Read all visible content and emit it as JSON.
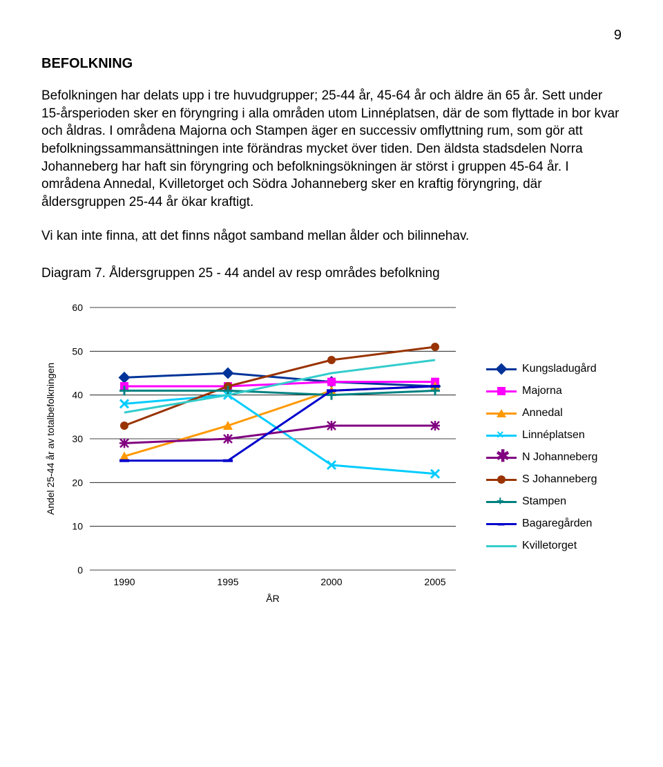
{
  "page_number": "9",
  "section_title": "BEFOLKNING",
  "paragraph1": "Befolkningen har delats upp i tre huvudgrupper; 25-44 år, 45-64 år och äldre än 65 år. Sett under 15-årsperioden sker en föryngring i alla områden utom Linnéplatsen, där de som flyttade in bor kvar och åldras. I områdena Majorna och Stampen äger en successiv omflyttning rum, som gör att befolkningssammansättningen inte förändras mycket över tiden. Den äldsta stadsdelen Norra Johanneberg har haft sin föryngring och befolkningsökningen är störst i gruppen 45-64 år. I områdena Annedal, Kvilletorget och Södra Johanneberg sker en kraftig föryngring, där åldersgruppen 25-44 år ökar kraftigt.",
  "paragraph2": "Vi kan inte finna, att det finns något samband mellan ålder och bilinnehav.",
  "diagram_caption": "Diagram 7.  Åldersgruppen 25 - 44 andel av resp områdes befolkning",
  "chart": {
    "type": "line",
    "x_axis_label": "ÅR",
    "y_axis_label": "Andel 25-44 år av totalbefolkningen",
    "x_categories": [
      "1990",
      "1995",
      "2000",
      "2005"
    ],
    "y_ticks": [
      0,
      10,
      20,
      30,
      40,
      50,
      60
    ],
    "ylim": [
      0,
      60
    ],
    "background_color": "#ffffff",
    "gridline_color": "#000000",
    "axis_font_size": 14,
    "series": [
      {
        "name": "Kungsladugård",
        "color": "#003399",
        "marker": "diamond",
        "values": [
          44,
          45,
          43,
          42
        ]
      },
      {
        "name": "Majorna",
        "color": "#ff00ff",
        "marker": "square",
        "values": [
          42,
          42,
          43,
          43
        ]
      },
      {
        "name": "Annedal",
        "color": "#ff9900",
        "marker": "triangle",
        "values": [
          26,
          33,
          41,
          42
        ]
      },
      {
        "name": "Linnéplatsen",
        "color": "#00ccff",
        "marker": "x",
        "values": [
          38,
          40,
          24,
          22
        ]
      },
      {
        "name": "N Johanneberg",
        "color": "#800080",
        "marker": "asterisk",
        "values": [
          29,
          30,
          33,
          33
        ]
      },
      {
        "name": "S Johanneberg",
        "color": "#993300",
        "marker": "circle",
        "values": [
          33,
          42,
          48,
          51
        ]
      },
      {
        "name": "Stampen",
        "color": "#008080",
        "marker": "plus",
        "values": [
          41,
          41,
          40,
          41
        ]
      },
      {
        "name": "Bagaregården",
        "color": "#0000cc",
        "marker": "dash",
        "values": [
          25,
          25,
          41,
          42
        ]
      },
      {
        "name": "Kvilletorget",
        "color": "#33cccc",
        "marker": "none",
        "values": [
          36,
          40,
          45,
          48
        ]
      }
    ]
  }
}
